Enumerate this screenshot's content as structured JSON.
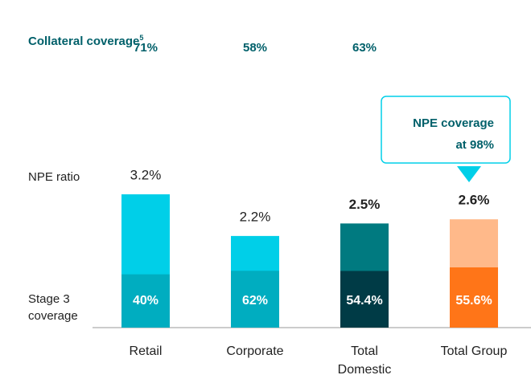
{
  "chart_data": {
    "type": "bar",
    "categories": [
      "Retail",
      "Corporate",
      "Total Domestic",
      "Total Group"
    ],
    "rows": {
      "collateral": {
        "label": "Collateral coverage",
        "footnote": "5",
        "values": [
          71,
          58,
          63,
          null
        ],
        "value_labels": [
          "71%",
          "58%",
          "63%",
          null
        ]
      },
      "npe": {
        "label": "NPE ratio"
      },
      "stage3": {
        "label": "Stage 3 coverage"
      }
    },
    "series": [
      {
        "name": "NPE ratio",
        "values": [
          3.2,
          2.2,
          2.5,
          2.6
        ],
        "value_labels": [
          "3.2%",
          "2.2%",
          "2.5%",
          "2.6%"
        ],
        "colors": [
          "#00cfe8",
          "#00cfe8",
          "#007a80",
          "#ffb98a"
        ]
      },
      {
        "name": "Stage 3 coverage",
        "values": [
          40,
          62,
          54.4,
          55.6
        ],
        "value_labels": [
          "40%",
          "62%",
          "54.4%",
          "55.6%"
        ],
        "colors": [
          "#00adc0",
          "#00adc0",
          "#003b46",
          "#ff7518"
        ]
      }
    ],
    "annotation": {
      "lines": [
        "NPE coverage",
        "at 98%"
      ]
    }
  }
}
